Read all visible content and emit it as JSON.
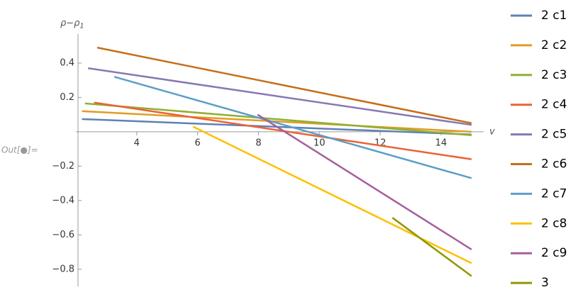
{
  "prompt": "Out[●]=",
  "chart_data": {
    "type": "line",
    "y_label": "ρ−ρ",
    "y_label_sub": "1",
    "x_label": "v",
    "xlim": [
      2,
      15.4
    ],
    "ylim": [
      -0.9,
      0.55
    ],
    "xticks": [
      4,
      6,
      8,
      10,
      12,
      14
    ],
    "yticks": [
      {
        "value": -0.8,
        "label": "−0.8"
      },
      {
        "value": -0.6,
        "label": "−0.6"
      },
      {
        "value": -0.4,
        "label": "−0.4"
      },
      {
        "value": -0.2,
        "label": "−0.2"
      },
      0.2,
      0.4
    ],
    "series": [
      {
        "name": "2 c1",
        "color": "#5e81b5",
        "x": [
          2.2,
          15
        ],
        "values": [
          0.074,
          -0.016
        ]
      },
      {
        "name": "2 c2",
        "color": "#e19c24",
        "x": [
          2.2,
          15
        ],
        "values": [
          0.12,
          0.0
        ]
      },
      {
        "name": "2 c3",
        "color": "#8fb032",
        "x": [
          2.3,
          15
        ],
        "values": [
          0.165,
          -0.02
        ]
      },
      {
        "name": "2 c4",
        "color": "#eb6235",
        "x": [
          2.6,
          15
        ],
        "values": [
          0.17,
          -0.16
        ]
      },
      {
        "name": "2 c5",
        "color": "#8778b3",
        "x": [
          2.4,
          15
        ],
        "values": [
          0.37,
          0.04
        ]
      },
      {
        "name": "2 c6",
        "color": "#c56e1a",
        "x": [
          2.7,
          15
        ],
        "values": [
          0.49,
          0.05
        ]
      },
      {
        "name": "2 c7",
        "color": "#5d9ec7",
        "x": [
          3.26,
          15
        ],
        "values": [
          0.32,
          -0.27
        ]
      },
      {
        "name": "2 c8",
        "color": "#ffbf00",
        "x": [
          5.85,
          15
        ],
        "values": [
          0.03,
          -0.765
        ]
      },
      {
        "name": "2 c9",
        "color": "#a5609d",
        "x": [
          7.97,
          15
        ],
        "values": [
          0.1,
          -0.685
        ]
      },
      {
        "name": "3",
        "color": "#929600",
        "x": [
          12.4,
          15
        ],
        "values": [
          -0.5,
          -0.84
        ]
      }
    ]
  }
}
